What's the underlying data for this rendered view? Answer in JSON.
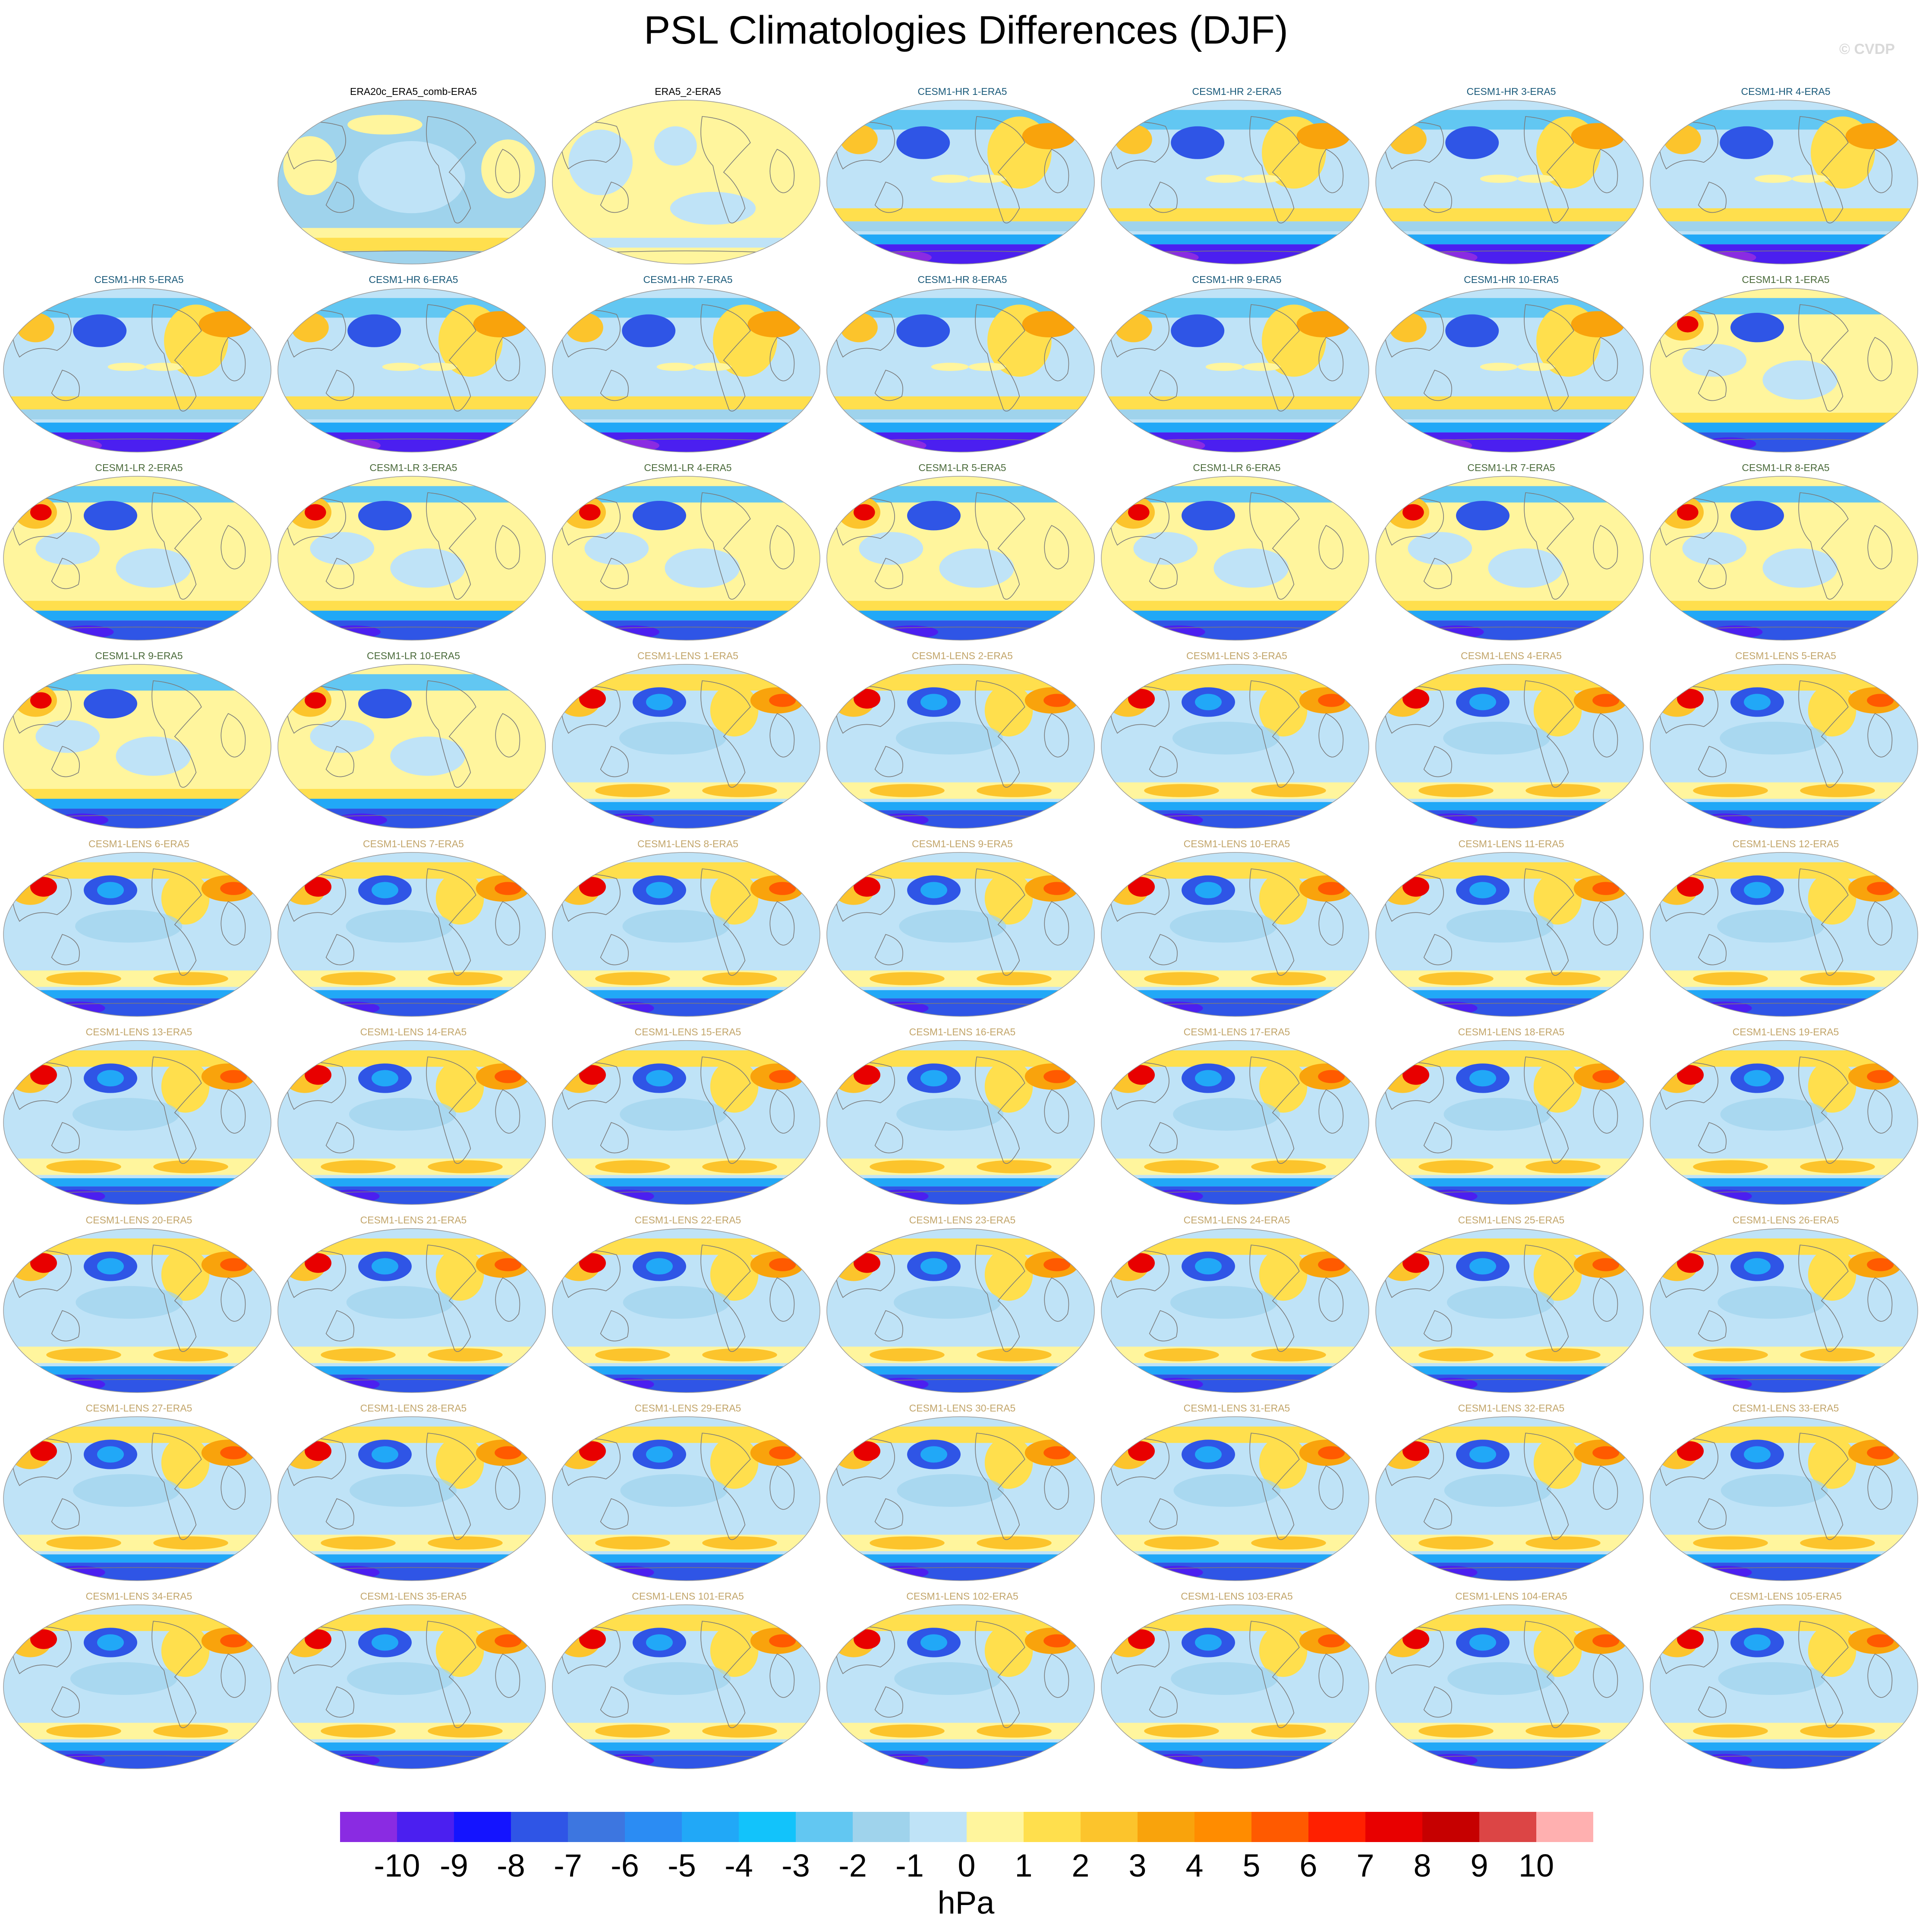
{
  "title": "PSL Climatologies Differences (DJF)",
  "watermark": "© CVDP",
  "colors": {
    "title_obs": "#000000",
    "title_hr": "#1a5a7a",
    "title_lr": "#4a6a3a",
    "title_lens": "#c2a56a"
  },
  "layout_grid": {
    "columns": 7,
    "first_cell_empty": true
  },
  "panels": [
    {
      "title": "ERA20c_ERA5_comb-ERA5",
      "group": "obs"
    },
    {
      "title": "ERA5_2-ERA5",
      "group": "obs"
    },
    {
      "title": "CESM1-HR 1-ERA5",
      "group": "hr"
    },
    {
      "title": "CESM1-HR 2-ERA5",
      "group": "hr"
    },
    {
      "title": "CESM1-HR 3-ERA5",
      "group": "hr"
    },
    {
      "title": "CESM1-HR 4-ERA5",
      "group": "hr"
    },
    {
      "title": "CESM1-HR 5-ERA5",
      "group": "hr"
    },
    {
      "title": "CESM1-HR 6-ERA5",
      "group": "hr"
    },
    {
      "title": "CESM1-HR 7-ERA5",
      "group": "hr"
    },
    {
      "title": "CESM1-HR 8-ERA5",
      "group": "hr"
    },
    {
      "title": "CESM1-HR 9-ERA5",
      "group": "hr"
    },
    {
      "title": "CESM1-HR 10-ERA5",
      "group": "hr"
    },
    {
      "title": "CESM1-LR 1-ERA5",
      "group": "lr"
    },
    {
      "title": "CESM1-LR 2-ERA5",
      "group": "lr"
    },
    {
      "title": "CESM1-LR 3-ERA5",
      "group": "lr"
    },
    {
      "title": "CESM1-LR 4-ERA5",
      "group": "lr"
    },
    {
      "title": "CESM1-LR 5-ERA5",
      "group": "lr"
    },
    {
      "title": "CESM1-LR 6-ERA5",
      "group": "lr"
    },
    {
      "title": "CESM1-LR 7-ERA5",
      "group": "lr"
    },
    {
      "title": "CESM1-LR 8-ERA5",
      "group": "lr"
    },
    {
      "title": "CESM1-LR 9-ERA5",
      "group": "lr"
    },
    {
      "title": "CESM1-LR 10-ERA5",
      "group": "lr"
    },
    {
      "title": "CESM1-LENS 1-ERA5",
      "group": "lens"
    },
    {
      "title": "CESM1-LENS 2-ERA5",
      "group": "lens"
    },
    {
      "title": "CESM1-LENS 3-ERA5",
      "group": "lens"
    },
    {
      "title": "CESM1-LENS 4-ERA5",
      "group": "lens"
    },
    {
      "title": "CESM1-LENS 5-ERA5",
      "group": "lens"
    },
    {
      "title": "CESM1-LENS 6-ERA5",
      "group": "lens"
    },
    {
      "title": "CESM1-LENS 7-ERA5",
      "group": "lens"
    },
    {
      "title": "CESM1-LENS 8-ERA5",
      "group": "lens"
    },
    {
      "title": "CESM1-LENS 9-ERA5",
      "group": "lens"
    },
    {
      "title": "CESM1-LENS 10-ERA5",
      "group": "lens"
    },
    {
      "title": "CESM1-LENS 11-ERA5",
      "group": "lens"
    },
    {
      "title": "CESM1-LENS 12-ERA5",
      "group": "lens"
    },
    {
      "title": "CESM1-LENS 13-ERA5",
      "group": "lens"
    },
    {
      "title": "CESM1-LENS 14-ERA5",
      "group": "lens"
    },
    {
      "title": "CESM1-LENS 15-ERA5",
      "group": "lens"
    },
    {
      "title": "CESM1-LENS 16-ERA5",
      "group": "lens"
    },
    {
      "title": "CESM1-LENS 17-ERA5",
      "group": "lens"
    },
    {
      "title": "CESM1-LENS 18-ERA5",
      "group": "lens"
    },
    {
      "title": "CESM1-LENS 19-ERA5",
      "group": "lens"
    },
    {
      "title": "CESM1-LENS 20-ERA5",
      "group": "lens"
    },
    {
      "title": "CESM1-LENS 21-ERA5",
      "group": "lens"
    },
    {
      "title": "CESM1-LENS 22-ERA5",
      "group": "lens"
    },
    {
      "title": "CESM1-LENS 23-ERA5",
      "group": "lens"
    },
    {
      "title": "CESM1-LENS 24-ERA5",
      "group": "lens"
    },
    {
      "title": "CESM1-LENS 25-ERA5",
      "group": "lens"
    },
    {
      "title": "CESM1-LENS 26-ERA5",
      "group": "lens"
    },
    {
      "title": "CESM1-LENS 27-ERA5",
      "group": "lens"
    },
    {
      "title": "CESM1-LENS 28-ERA5",
      "group": "lens"
    },
    {
      "title": "CESM1-LENS 29-ERA5",
      "group": "lens"
    },
    {
      "title": "CESM1-LENS 30-ERA5",
      "group": "lens"
    },
    {
      "title": "CESM1-LENS 31-ERA5",
      "group": "lens"
    },
    {
      "title": "CESM1-LENS 32-ERA5",
      "group": "lens"
    },
    {
      "title": "CESM1-LENS 33-ERA5",
      "group": "lens"
    },
    {
      "title": "CESM1-LENS 34-ERA5",
      "group": "lens"
    },
    {
      "title": "CESM1-LENS 35-ERA5",
      "group": "lens"
    },
    {
      "title": "CESM1-LENS 101-ERA5",
      "group": "lens"
    },
    {
      "title": "CESM1-LENS 102-ERA5",
      "group": "lens"
    },
    {
      "title": "CESM1-LENS 103-ERA5",
      "group": "lens"
    },
    {
      "title": "CESM1-LENS 104-ERA5",
      "group": "lens"
    },
    {
      "title": "CESM1-LENS 105-ERA5",
      "group": "lens"
    }
  ],
  "colorbar": {
    "units": "hPa",
    "ticks": [
      "-10",
      "-9",
      "-8",
      "-7",
      "-6",
      "-5",
      "-4",
      "-3",
      "-2",
      "-1",
      "0",
      "1",
      "2",
      "3",
      "4",
      "5",
      "6",
      "7",
      "8",
      "9",
      "10"
    ],
    "colors": [
      "#8a2be2",
      "#4b1ff0",
      "#1414ff",
      "#2f55e6",
      "#3d76e0",
      "#2b8cf3",
      "#21a8f7",
      "#12c3fb",
      "#62c7f2",
      "#9fd3ec",
      "#bfe3f7",
      "#fff59d",
      "#ffdf4d",
      "#fcc42c",
      "#f9a30c",
      "#ff8c00",
      "#ff5a00",
      "#ff2000",
      "#e80000",
      "#c60000",
      "#dc4545",
      "#ffb0b0"
    ]
  }
}
